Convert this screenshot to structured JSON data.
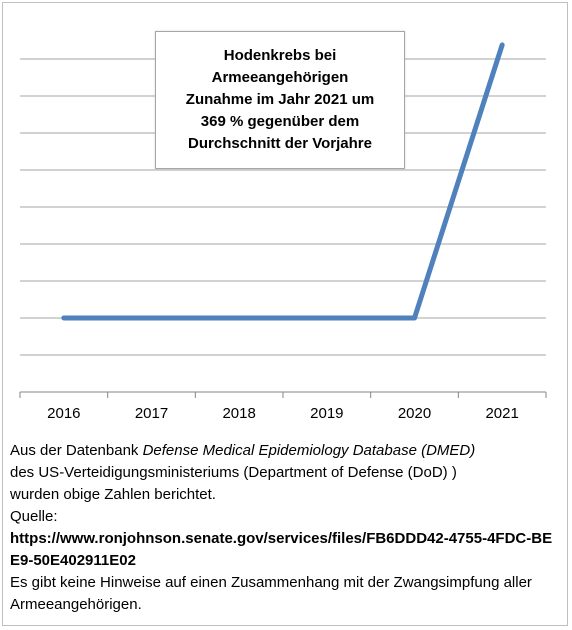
{
  "chart_data": {
    "type": "line",
    "title": "Hodenkrebs bei\nArmeeangehörigen\nZunahme im Jahr 2021 um\n369 % gegenüber dem\nDurchschnitt der Vorjahre",
    "categories": [
      "2016",
      "2017",
      "2018",
      "2019",
      "2020",
      "2021"
    ],
    "series": [
      {
        "values": [
          100,
          100,
          100,
          100,
          100,
          469
        ]
      }
    ],
    "ylim": [
      0,
      500
    ],
    "y_gridlines": [
      0,
      50,
      100,
      150,
      200,
      250,
      300,
      350,
      400,
      450
    ],
    "grid": true,
    "y_tick_labels_shown": false,
    "line_color": "#4f81bd",
    "gridline_color": "#a6a6a6"
  },
  "caption": {
    "line1_prefix": "Aus der Datenbank ",
    "line1_italic": "Defense Medical Epidemiology Database (DMED)",
    "line2": "des US-Verteidigungsministeriums (Department of Defense (DoD) )",
    "line3": "wurden obige Zahlen berichtet.",
    "source_label": "Quelle:",
    "source_url": "https://www.ronjohnson.senate.gov/services/files/FB6DDD42-4755-4FDC-BEE9-50E402911E02",
    "note": "Es gibt keine Hinweise auf einen Zusammenhang mit der Zwangsimpfung aller Armeeangehörigen."
  }
}
